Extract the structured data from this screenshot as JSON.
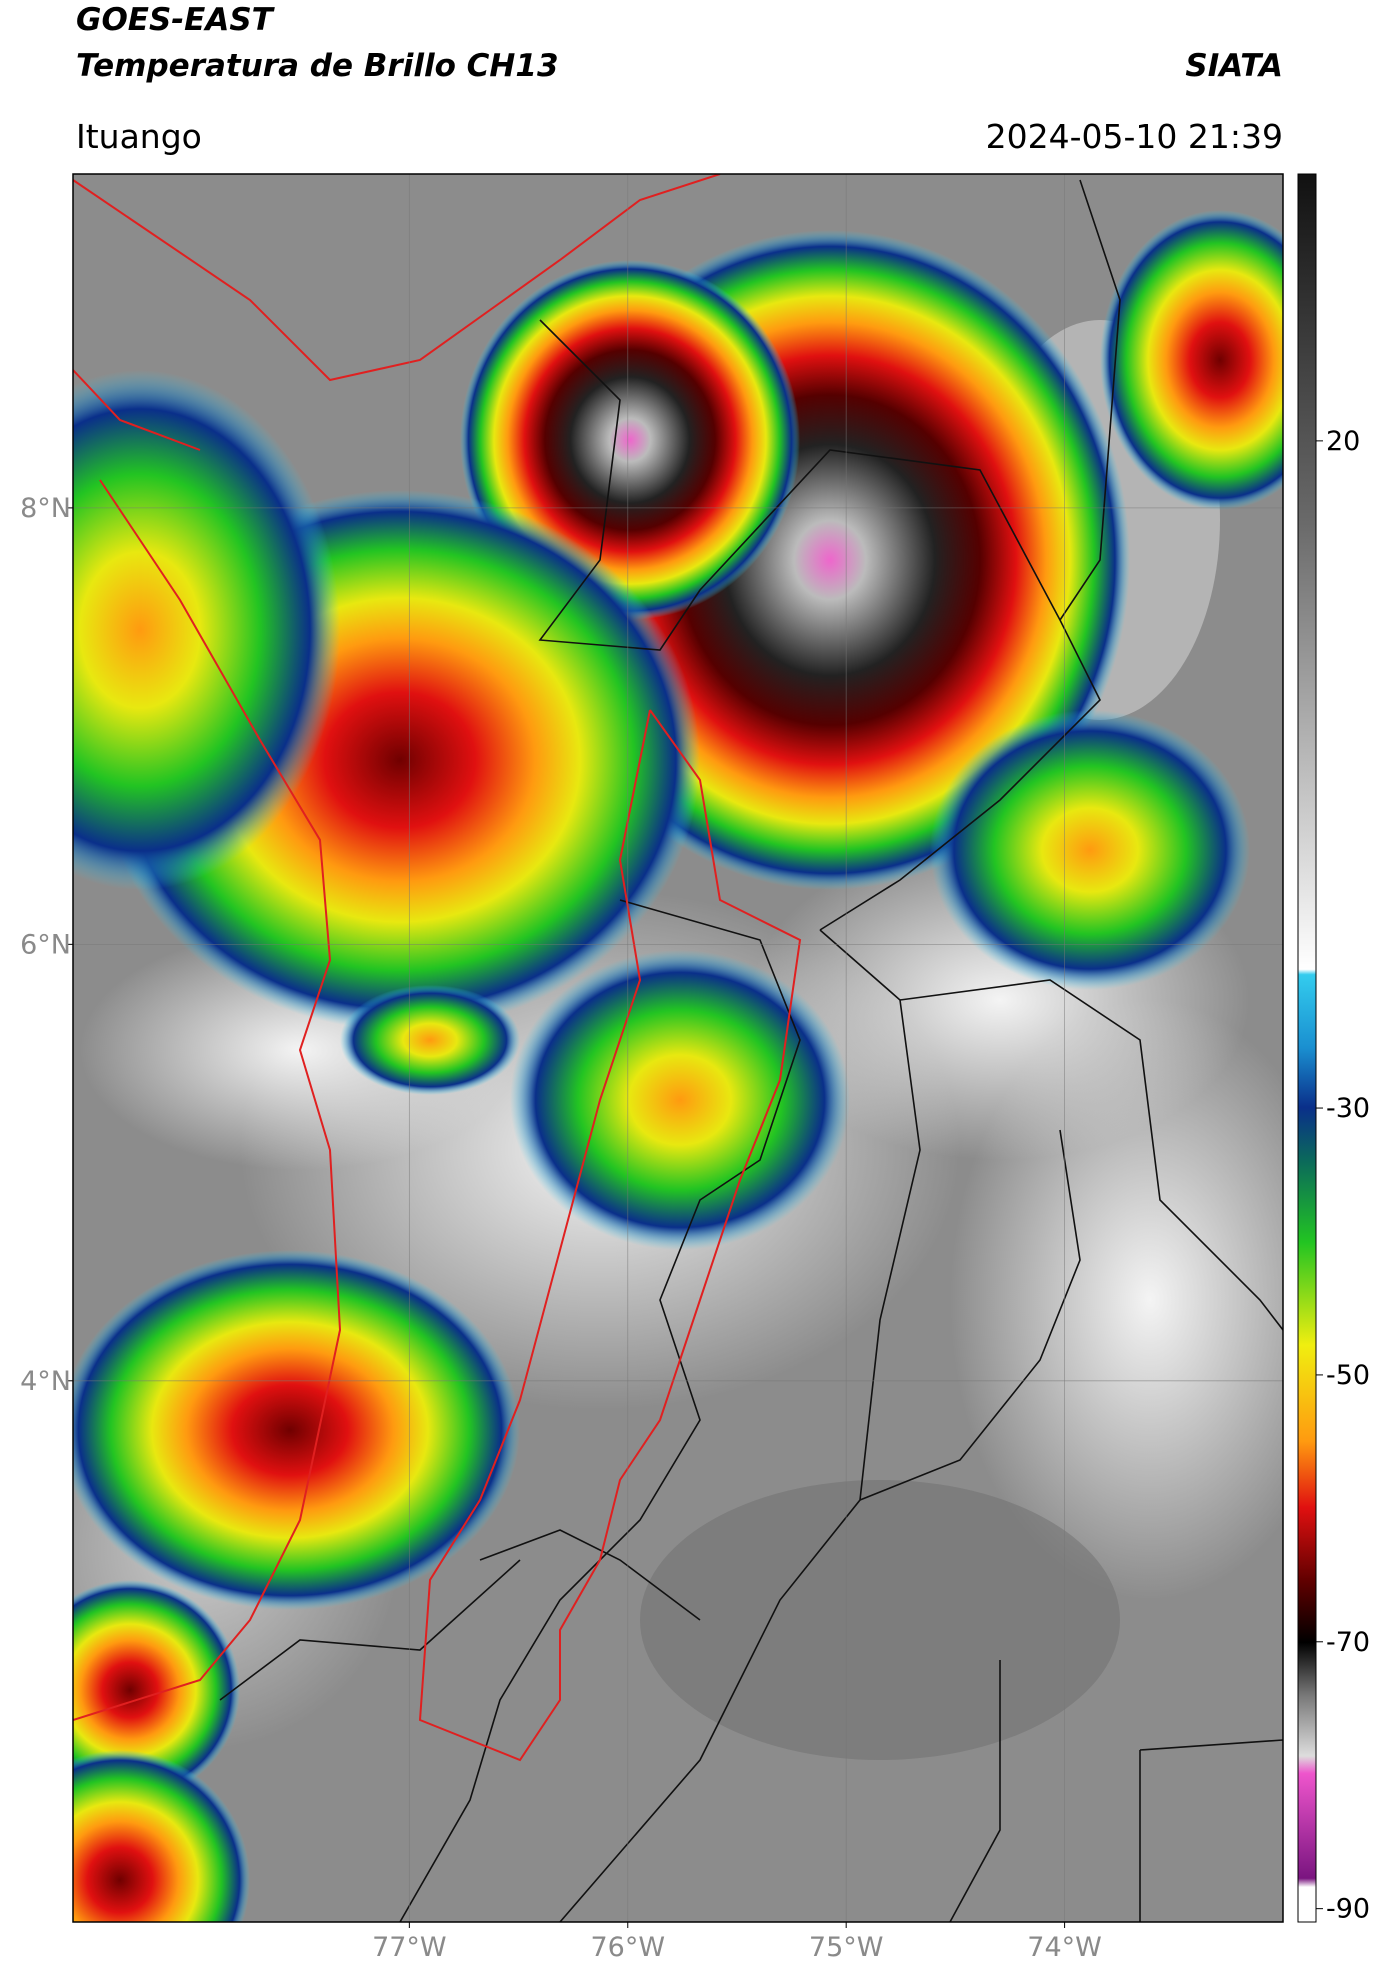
{
  "header": {
    "title_line1": "GOES-EAST",
    "title_line2": "Temperatura de Brillo CH13",
    "source": "SIATA",
    "location": "Ituango",
    "datetime": "2024-05-10 21:39"
  },
  "map": {
    "xlim": [
      -78.54,
      -73.0
    ],
    "ylim": [
      1.52,
      9.53
    ],
    "xticks": [
      {
        "value": -77,
        "label": "77°W"
      },
      {
        "value": -76,
        "label": "76°W"
      },
      {
        "value": -75,
        "label": "75°W"
      },
      {
        "value": -74,
        "label": "74°W"
      }
    ],
    "yticks": [
      {
        "value": 4,
        "label": "4°N"
      },
      {
        "value": 6,
        "label": "6°N"
      },
      {
        "value": 8,
        "label": "8°N"
      }
    ],
    "grid": true
  },
  "colorbar": {
    "lim": [
      -91,
      40
    ],
    "ticks": [
      20,
      -30,
      -50,
      -70,
      -90
    ]
  }
}
